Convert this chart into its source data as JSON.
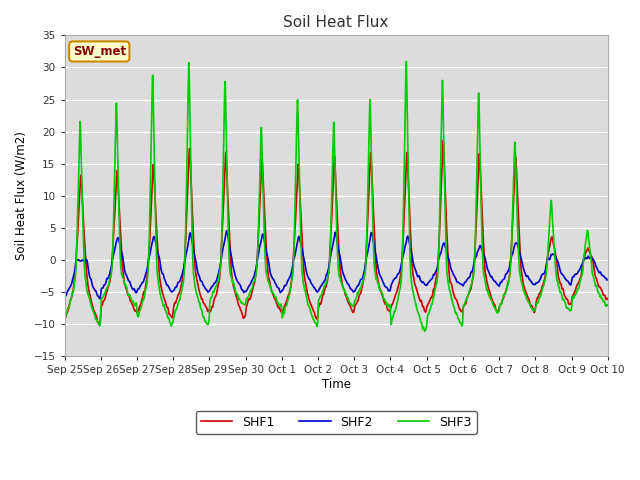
{
  "title": "Soil Heat Flux",
  "ylabel": "Soil Heat Flux (W/m2)",
  "xlabel": "Time",
  "ylim": [
    -15,
    35
  ],
  "yticks": [
    -15,
    -10,
    -5,
    0,
    5,
    10,
    15,
    20,
    25,
    30,
    35
  ],
  "bg_color": "#dcdcdc",
  "line_colors": {
    "SHF1": "#cc0000",
    "SHF2": "#0000cc",
    "SHF3": "#00cc00"
  },
  "line_width": 1.2,
  "annotation_text": "SW_met",
  "annotation_facecolor": "#ffffcc",
  "annotation_edgecolor": "#cc8800",
  "annotation_textcolor": "#880000",
  "x_tick_labels": [
    "Sep 25",
    "Sep 26",
    "Sep 27",
    "Sep 28",
    "Sep 29",
    "Sep 30",
    "Oct 1",
    "Oct 2",
    "Oct 3",
    "Oct 4",
    "Oct 5",
    "Oct 6",
    "Oct 7",
    "Oct 8",
    "Oct 9",
    "Oct 10"
  ],
  "num_days": 15,
  "points_per_day": 144,
  "shf1_peaks": [
    14,
    15,
    16,
    19,
    18,
    17,
    16,
    17,
    18,
    18,
    20,
    18,
    17,
    4,
    2
  ],
  "shf2_peaks": [
    0,
    4,
    4,
    4.5,
    5,
    4.5,
    4,
    4.5,
    4.5,
    4,
    3,
    2.5,
    3,
    1,
    0.5
  ],
  "shf3_peaks": [
    23,
    26,
    31,
    33,
    30,
    22,
    27,
    23,
    27,
    33,
    30,
    28,
    20,
    10,
    5
  ],
  "shf1_troughs": [
    -10,
    -8,
    -9,
    -8,
    -9,
    -8,
    -9,
    -8,
    -8,
    -8,
    -8,
    -8,
    -8,
    -7,
    -6
  ],
  "shf2_troughs": [
    -6,
    -5,
    -5,
    -5,
    -5,
    -5,
    -5,
    -5,
    -5,
    -4,
    -4,
    -4,
    -4,
    -4,
    -3
  ],
  "shf3_troughs": [
    -10,
    -7,
    -10,
    -10,
    -7,
    -7,
    -10,
    -7,
    -7,
    -11,
    -10,
    -8,
    -8,
    -8,
    -7
  ]
}
